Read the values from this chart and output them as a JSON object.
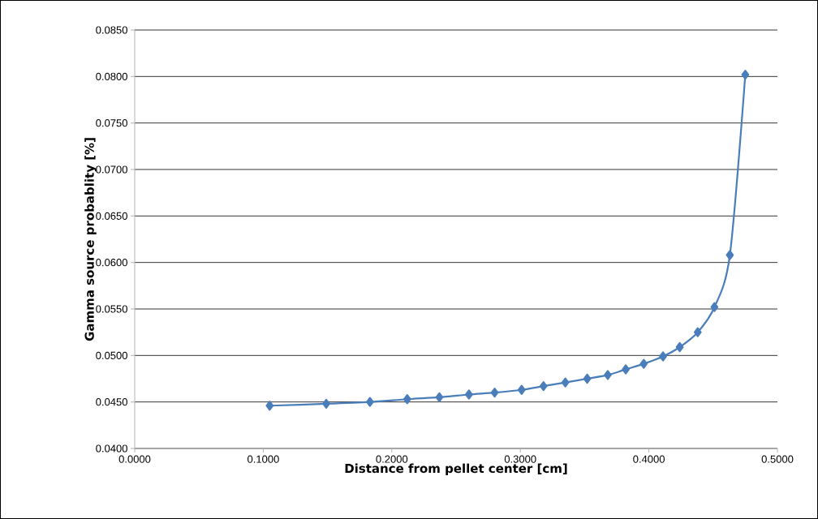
{
  "chart_data": {
    "type": "line",
    "xlabel": "Distance from pellet center [cm]",
    "ylabel": "Gamma source probablity [%]",
    "series": [
      {
        "color": "#4a7ebb",
        "x": [
          0.105,
          0.149,
          0.183,
          0.212,
          0.237,
          0.26,
          0.28,
          0.301,
          0.318,
          0.335,
          0.352,
          0.368,
          0.382,
          0.396,
          0.411,
          0.424,
          0.438,
          0.451,
          0.463,
          0.475
        ],
        "values": [
          0.0446,
          0.0448,
          0.045,
          0.0453,
          0.0455,
          0.0458,
          0.046,
          0.0463,
          0.0467,
          0.0471,
          0.0475,
          0.0479,
          0.0485,
          0.0491,
          0.0499,
          0.0509,
          0.0525,
          0.0552,
          0.0608,
          0.0802
        ]
      }
    ],
    "xlim": [
      0,
      0.5
    ],
    "ylim": [
      0.04,
      0.085
    ],
    "xticks": [
      {
        "value": 0,
        "label": "0.0000"
      },
      {
        "value": 0.1,
        "label": "0.1000"
      },
      {
        "value": 0.2,
        "label": "0.2000"
      },
      {
        "value": 0.3,
        "label": "0.3000"
      },
      {
        "value": 0.4,
        "label": "0.4000"
      },
      {
        "value": 0.5,
        "label": "0.5000"
      }
    ],
    "yticks": [
      {
        "value": 0.04,
        "label": "0.0400"
      },
      {
        "value": 0.045,
        "label": "0.0450"
      },
      {
        "value": 0.05,
        "label": "0.0500"
      },
      {
        "value": 0.055,
        "label": "0.0550"
      },
      {
        "value": 0.06,
        "label": "0.0600"
      },
      {
        "value": 0.065,
        "label": "0.0650"
      },
      {
        "value": 0.07,
        "label": "0.0700"
      },
      {
        "value": 0.075,
        "label": "0.0750"
      },
      {
        "value": 0.08,
        "label": "0.0800"
      },
      {
        "value": 0.085,
        "label": "0.0850"
      }
    ],
    "grid": "y",
    "marker": "diamond",
    "line_style": "solid"
  }
}
